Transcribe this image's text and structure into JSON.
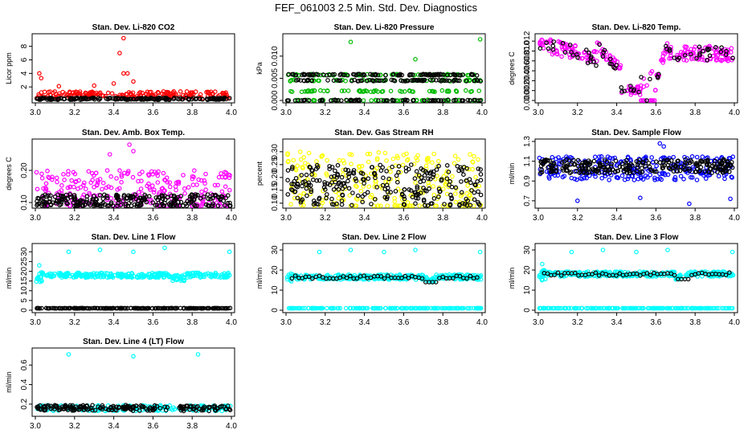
{
  "title": "FEF_061003  2.5 Min. Std. Dev. Diagnostics",
  "chart_data": [
    {
      "type": "scatter",
      "title": "Stan. Dev. Li-820 CO2",
      "ylabel": "Licor ppm",
      "xlim": [
        3.0,
        4.0
      ],
      "ylim": [
        0,
        9.5
      ],
      "xticks": [
        "3.0",
        "3.2",
        "3.4",
        "3.6",
        "3.8",
        "4.0"
      ],
      "yticks": [
        "2",
        "4",
        "6",
        "8"
      ],
      "series": [
        {
          "color": "#ff0000",
          "pattern": "low_spiky",
          "base": 0.6,
          "spread": 0.7,
          "outliers": [
            [
              3.02,
              4.0
            ],
            [
              3.03,
              3.3
            ],
            [
              3.12,
              2.1
            ],
            [
              3.45,
              9.2
            ],
            [
              3.43,
              7.0
            ],
            [
              3.45,
              4.0
            ],
            [
              3.47,
              4.0
            ],
            [
              3.5,
              2.8
            ],
            [
              3.4,
              2.5
            ],
            [
              3.3,
              2.2
            ]
          ]
        },
        {
          "color": "#000000",
          "pattern": "flat",
          "base": 0.25,
          "spread": 0.15
        }
      ]
    },
    {
      "type": "scatter",
      "title": "Stan. Dev. Li-820 Pressure",
      "ylabel": "kPa",
      "xlim": [
        3.0,
        4.0
      ],
      "ylim": [
        0,
        0.0145
      ],
      "xticks": [
        "3.0",
        "3.2",
        "3.4",
        "3.6",
        "3.8",
        "4.0"
      ],
      "yticks": [
        "0.000",
        "0.005",
        "0.010"
      ],
      "series": [
        {
          "color": "#00bb00",
          "pattern": "levels",
          "levels": [
            0,
            0.0021,
            0.0045,
            0.0058
          ],
          "outliers": [
            [
              3.33,
              0.0132
            ],
            [
              3.66,
              0.0093
            ],
            [
              3.99,
              0.0138
            ]
          ]
        },
        {
          "color": "#000000",
          "pattern": "levels",
          "levels": [
            0,
            0.0045,
            0.0058
          ]
        }
      ]
    },
    {
      "type": "scatter",
      "title": "Stan. Dev. Li-820 Temp.",
      "ylabel": "degrees C",
      "xlim": [
        3.0,
        4.0
      ],
      "ylim": [
        0,
        0.013
      ],
      "xticks": [
        "3.0",
        "3.2",
        "3.4",
        "3.6",
        "3.8",
        "4.0"
      ],
      "yticks": [
        "0.000",
        "0.002",
        "0.004",
        "0.006",
        "0.008",
        "0.010",
        "0.012"
      ],
      "series": [
        {
          "color": "#ff00ff",
          "pattern": "temp_dip"
        },
        {
          "color": "#000000",
          "pattern": "temp_dip_sparse"
        }
      ]
    },
    {
      "type": "scatter",
      "title": "Stan. Dev. Amb. Box Temp.",
      "ylabel": "degrees C",
      "xlim": [
        3.0,
        4.0
      ],
      "ylim": [
        0.09,
        0.29
      ],
      "xticks": [
        "3.0",
        "3.2",
        "3.4",
        "3.6",
        "3.8",
        "4.0"
      ],
      "yticks": [
        "0.10",
        "0.20"
      ],
      "series": [
        {
          "color": "#ff00ff",
          "pattern": "band",
          "base": 0.14,
          "spread": 0.06,
          "outliers": [
            [
              3.48,
              0.28
            ],
            [
              3.5,
              0.26
            ],
            [
              3.38,
              0.25
            ]
          ]
        },
        {
          "color": "#000000",
          "pattern": "band",
          "base": 0.105,
          "spread": 0.02
        }
      ]
    },
    {
      "type": "scatter",
      "title": "Stan. Dev. Gas Stream RH",
      "ylabel": "percent",
      "xlim": [
        3.0,
        4.0
      ],
      "ylim": [
        0.09,
        0.34
      ],
      "xticks": [
        "3.0",
        "3.2",
        "3.4",
        "3.6",
        "3.8",
        "4.0"
      ],
      "yticks": [
        "0.10",
        "0.15",
        "0.20",
        "0.25",
        "0.30"
      ],
      "series": [
        {
          "color": "#ffff00",
          "pattern": "band",
          "base": 0.18,
          "spread": 0.12
        },
        {
          "color": "#000000",
          "pattern": "band",
          "base": 0.17,
          "spread": 0.08
        }
      ]
    },
    {
      "type": "scatter",
      "title": "Stan. Dev. Sample Flow",
      "ylabel": "ml/min",
      "xlim": [
        3.0,
        4.0
      ],
      "ylim": [
        0.65,
        1.3
      ],
      "xticks": [
        "3.0",
        "3.2",
        "3.4",
        "3.6",
        "3.8",
        "4.0"
      ],
      "yticks": [
        "0.7",
        "0.9",
        "1.1",
        "1.3"
      ],
      "series": [
        {
          "color": "#0000ff",
          "pattern": "band",
          "base": 1.03,
          "spread": 0.12,
          "outliers": [
            [
              3.2,
              0.7
            ],
            [
              3.52,
              0.73
            ],
            [
              3.77,
              0.67
            ],
            [
              3.98,
              0.72
            ],
            [
              3.62,
              1.28
            ],
            [
              3.64,
              1.25
            ]
          ]
        },
        {
          "color": "#000000",
          "pattern": "band",
          "base": 1.05,
          "spread": 0.07
        }
      ]
    },
    {
      "type": "scatter",
      "title": "Stan. Dev. Line 1 Flow",
      "ylabel": "ml/min",
      "xlim": [
        3.0,
        4.0
      ],
      "ylim": [
        0,
        33
      ],
      "xticks": [
        "3.0",
        "3.2",
        "3.4",
        "3.6",
        "3.8",
        "4.0"
      ],
      "yticks": [
        "0",
        "5",
        "10",
        "15",
        "20",
        "25",
        "30"
      ],
      "series": [
        {
          "color": "#00ffff",
          "pattern": "line_flow",
          "base": 18,
          "outliers": [
            [
              3.17,
              30
            ],
            [
              3.33,
              31
            ],
            [
              3.5,
              30
            ],
            [
              3.66,
              32
            ],
            [
              3.99,
              30
            ],
            [
              3.02,
              23
            ]
          ]
        },
        {
          "color": "#000000",
          "pattern": "flat",
          "base": 1,
          "spread": 0.1
        }
      ]
    },
    {
      "type": "scatter",
      "title": "Stan. Dev. Line 2 Flow",
      "ylabel": "ml/min",
      "xlim": [
        3.0,
        4.0
      ],
      "ylim": [
        0,
        32
      ],
      "xticks": [
        "3.0",
        "3.2",
        "3.4",
        "3.6",
        "3.8",
        "4.0"
      ],
      "yticks": [
        "0",
        "10",
        "20",
        "30"
      ],
      "series": [
        {
          "color": "#00ffff",
          "pattern": "line_flow",
          "base": 16.5,
          "lowline": 1,
          "outliers": [
            [
              3.17,
              29
            ],
            [
              3.33,
              30
            ],
            [
              3.5,
              29
            ],
            [
              3.66,
              30
            ],
            [
              3.99,
              29
            ]
          ]
        },
        {
          "color": "#000000",
          "pattern": "sparse_line",
          "base": 16.5
        }
      ]
    },
    {
      "type": "scatter",
      "title": "Stan. Dev. Line 3 Flow",
      "ylabel": "ml/min",
      "xlim": [
        3.0,
        4.0
      ],
      "ylim": [
        0,
        32
      ],
      "xticks": [
        "3.0",
        "3.2",
        "3.4",
        "3.6",
        "3.8",
        "4.0"
      ],
      "yticks": [
        "0",
        "10",
        "20",
        "30"
      ],
      "series": [
        {
          "color": "#00ffff",
          "pattern": "line_flow",
          "base": 18,
          "lowline": 1,
          "outliers": [
            [
              3.17,
              29
            ],
            [
              3.33,
              30
            ],
            [
              3.5,
              29
            ],
            [
              3.66,
              30
            ],
            [
              3.99,
              29
            ],
            [
              3.02,
              23
            ]
          ]
        },
        {
          "color": "#000000",
          "pattern": "sparse_line",
          "base": 18
        }
      ]
    },
    {
      "type": "scatter",
      "title": "Stan. Dev. Line 4 (LT) Flow",
      "ylabel": "ml/min",
      "xlim": [
        3.0,
        4.0
      ],
      "ylim": [
        0.1,
        0.75
      ],
      "xticks": [
        "3.0",
        "3.2",
        "3.4",
        "3.6",
        "3.8",
        "4.0"
      ],
      "yticks": [
        "0.2",
        "0.4",
        "0.6"
      ],
      "series": [
        {
          "color": "#00ffff",
          "pattern": "flat",
          "base": 0.16,
          "spread": 0.03,
          "outliers": [
            [
              3.17,
              0.71
            ],
            [
              3.5,
              0.69
            ],
            [
              3.83,
              0.71
            ]
          ]
        },
        {
          "color": "#000000",
          "pattern": "flat",
          "base": 0.16,
          "spread": 0.03
        }
      ]
    }
  ]
}
